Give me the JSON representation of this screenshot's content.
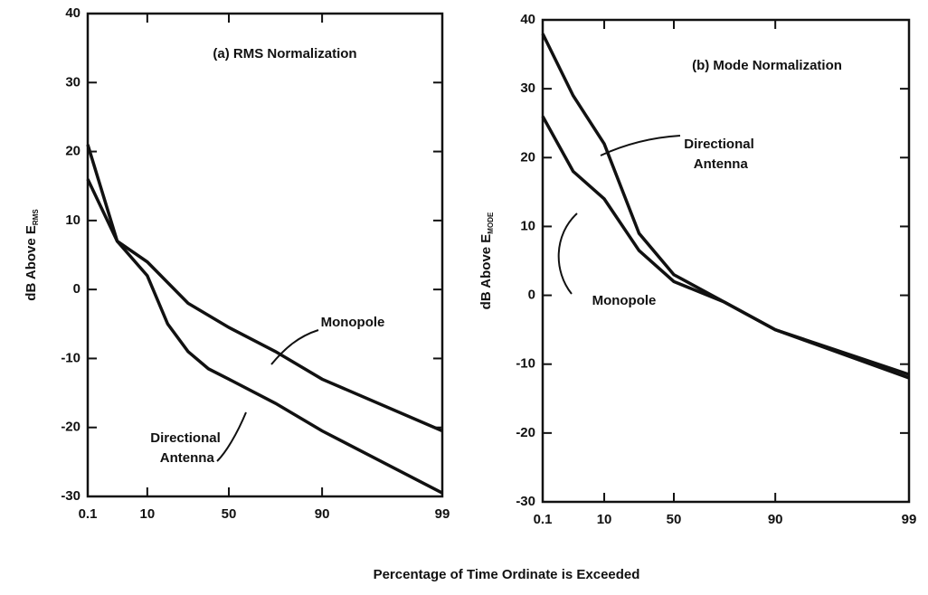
{
  "xlabel": "Percentage of Time Ordinate is Exceeded",
  "chart_data": [
    {
      "type": "line",
      "title": "(a) RMS Normalization",
      "ylabel": "dB Above E",
      "ylabel_sub": "RMS",
      "xscale": "probability",
      "xlim": [
        0.1,
        99
      ],
      "xticks": [
        0.1,
        10,
        50,
        90,
        99
      ],
      "ylim": [
        -30,
        40
      ],
      "yticks": [
        -30,
        -20,
        -10,
        0,
        10,
        20,
        30,
        40
      ],
      "series": [
        {
          "name": "Directional Antenna",
          "color": "#111111",
          "x": [
            0.1,
            5,
            10,
            20,
            30,
            40,
            50,
            70,
            90,
            99
          ],
          "values": [
            21,
            7,
            2,
            -5,
            -9,
            -11.5,
            -13,
            -16.5,
            -20.5,
            -29.5
          ]
        },
        {
          "name": "Monopole",
          "color": "#111111",
          "x": [
            0.1,
            5,
            10,
            30,
            50,
            70,
            90,
            99
          ],
          "values": [
            16,
            7,
            4,
            -2,
            -5.5,
            -9,
            -13,
            -20.5
          ]
        }
      ]
    },
    {
      "type": "line",
      "title": "(b) Mode Normalization",
      "ylabel": "dB Above E",
      "ylabel_sub": "MODE",
      "xscale": "probability",
      "xlim": [
        0.1,
        99
      ],
      "xticks": [
        0.1,
        10,
        50,
        90,
        99
      ],
      "ylim": [
        -30,
        40
      ],
      "yticks": [
        -30,
        -20,
        -10,
        0,
        10,
        20,
        30,
        40
      ],
      "series": [
        {
          "name": "Directional Antenna",
          "color": "#111111",
          "x": [
            0.1,
            5,
            10,
            30,
            50,
            70,
            90,
            99
          ],
          "values": [
            38,
            29,
            22,
            9,
            3,
            -1,
            -5,
            -12
          ]
        },
        {
          "name": "Monopole",
          "color": "#111111",
          "x": [
            0.1,
            5,
            10,
            30,
            50,
            70,
            90,
            99
          ],
          "values": [
            26,
            18,
            14,
            6.5,
            2,
            -1,
            -5,
            -11.5
          ]
        }
      ]
    }
  ]
}
